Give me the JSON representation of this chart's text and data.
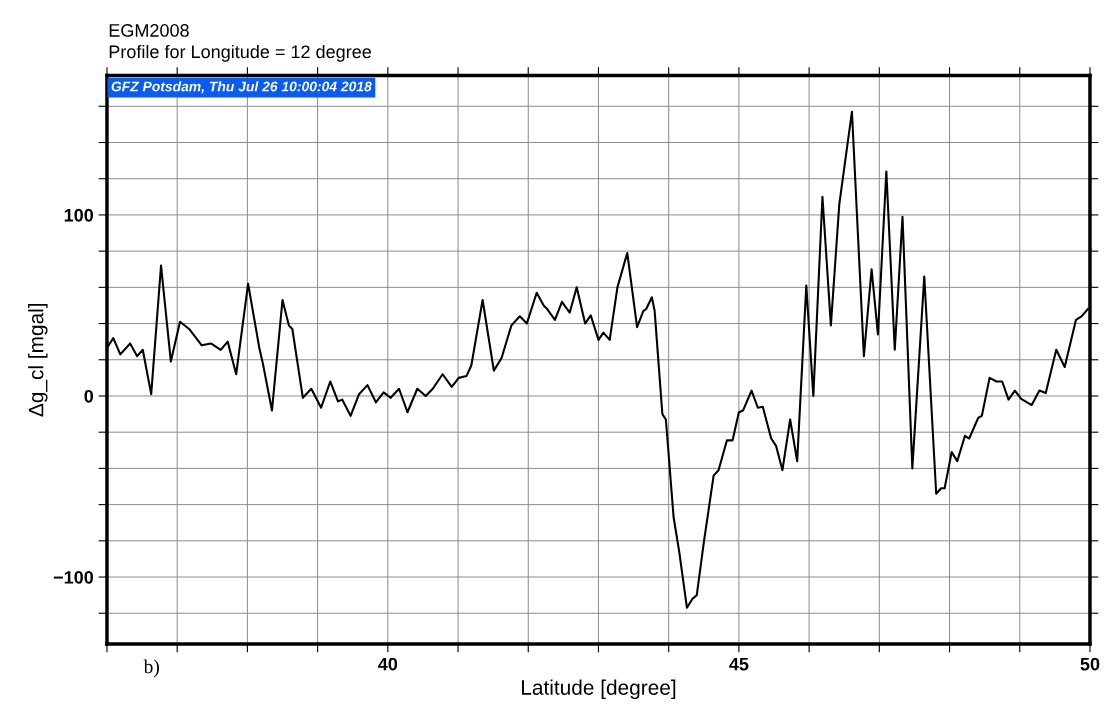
{
  "chart_data": {
    "type": "line",
    "title": "EGM2008",
    "subtitle": "Profile for Longitude = 12 degree",
    "xlabel": "Latitude [degree]",
    "ylabel": "Δg_cl [mgal]",
    "annotations": [
      "GFZ Potsdam, Thu Jul 26 10:00:04 2018",
      "b)"
    ],
    "xlim": [
      36,
      50
    ],
    "ylim": [
      -137,
      177
    ],
    "xticks": [
      {
        "value": 36,
        "label": null
      },
      {
        "value": 37,
        "label": null
      },
      {
        "value": 38,
        "label": null
      },
      {
        "value": 39,
        "label": null
      },
      40,
      {
        "value": 41,
        "label": null
      },
      {
        "value": 42,
        "label": null
      },
      {
        "value": 43,
        "label": null
      },
      {
        "value": 44,
        "label": null
      },
      45,
      {
        "value": 46,
        "label": null
      },
      {
        "value": 47,
        "label": null
      },
      {
        "value": 48,
        "label": null
      },
      {
        "value": 49,
        "label": null
      },
      50
    ],
    "yticks": [
      {
        "value": -120,
        "label": null
      },
      -100,
      {
        "value": -80,
        "label": null
      },
      {
        "value": -60,
        "label": null
      },
      {
        "value": -40,
        "label": null
      },
      {
        "value": -20,
        "label": null
      },
      0,
      {
        "value": 20,
        "label": null
      },
      {
        "value": 40,
        "label": null
      },
      {
        "value": 60,
        "label": null
      },
      {
        "value": 80,
        "label": null
      },
      100,
      {
        "value": 120,
        "label": null
      },
      {
        "value": 140,
        "label": null
      },
      {
        "value": 160,
        "label": null
      }
    ],
    "grid": true,
    "marker": "none",
    "line_style": "solid",
    "legend": false,
    "series": [
      {
        "color": "#000000",
        "x": [
          36.0,
          36.09,
          36.19,
          36.33,
          36.43,
          36.51,
          36.63,
          36.77,
          36.91,
          37.04,
          37.17,
          37.35,
          37.48,
          37.62,
          37.72,
          37.84,
          38.01,
          38.17,
          38.22,
          38.35,
          38.5,
          38.59,
          38.64,
          38.79,
          38.91,
          39.05,
          39.18,
          39.29,
          39.35,
          39.47,
          39.59,
          39.71,
          39.83,
          39.94,
          40.04,
          40.16,
          40.28,
          40.42,
          40.54,
          40.64,
          40.78,
          40.91,
          41.01,
          41.12,
          41.19,
          41.35,
          41.51,
          41.62,
          41.76,
          41.88,
          41.98,
          42.12,
          42.22,
          42.27,
          42.38,
          42.48,
          42.59,
          42.69,
          42.81,
          42.89,
          43.0,
          43.07,
          43.16,
          43.27,
          43.41,
          43.55,
          43.64,
          43.68,
          43.76,
          43.8,
          43.91,
          43.96,
          44.07,
          44.15,
          44.26,
          44.34,
          44.4,
          44.5,
          44.64,
          44.71,
          44.83,
          44.91,
          45.0,
          45.06,
          45.18,
          45.27,
          45.34,
          45.46,
          45.53,
          45.62,
          45.73,
          45.83,
          45.96,
          46.06,
          46.19,
          46.31,
          46.43,
          46.61,
          46.78,
          46.89,
          46.98,
          47.1,
          47.22,
          47.33,
          47.47,
          47.64,
          47.81,
          47.88,
          47.93,
          48.03,
          48.11,
          48.22,
          48.28,
          48.41,
          48.46,
          48.57,
          48.67,
          48.75,
          48.84,
          48.93,
          49.02,
          49.17,
          49.28,
          49.37,
          49.52,
          49.64,
          49.8,
          49.88,
          49.97
        ],
        "values": [
          26.5,
          32,
          23,
          29,
          22,
          25.5,
          1,
          72,
          19,
          41,
          37,
          28,
          29,
          25.5,
          30,
          12,
          62,
          26.5,
          18,
          -8,
          53,
          39,
          37,
          -1,
          4,
          -6.5,
          8,
          -3,
          -2,
          -11,
          1,
          6,
          -3.5,
          2,
          -1,
          4,
          -9,
          4,
          0,
          4,
          12,
          5,
          10,
          11,
          17,
          53,
          14,
          21,
          39,
          44,
          40,
          57,
          50,
          48,
          42,
          52,
          46,
          60,
          40,
          44.5,
          31,
          35,
          31,
          60,
          79,
          38,
          47,
          48,
          54.5,
          47,
          -10,
          -13,
          -67,
          -86,
          -117,
          -112,
          -110,
          -81,
          -44,
          -41,
          -24.5,
          -24.5,
          -9,
          -8,
          3,
          -6.5,
          -6,
          -23.5,
          -27.6,
          -41,
          -13,
          -36,
          61,
          0,
          110,
          39,
          106,
          157,
          22,
          70,
          34,
          124,
          25.5,
          99,
          -40,
          66,
          -54,
          -51,
          -51,
          -31,
          -36,
          -22,
          -23.5,
          -12,
          -11,
          10,
          8,
          8,
          -2,
          3,
          -1.6,
          -5,
          3,
          1.6,
          25.5,
          16,
          42,
          44,
          48
        ]
      }
    ]
  }
}
